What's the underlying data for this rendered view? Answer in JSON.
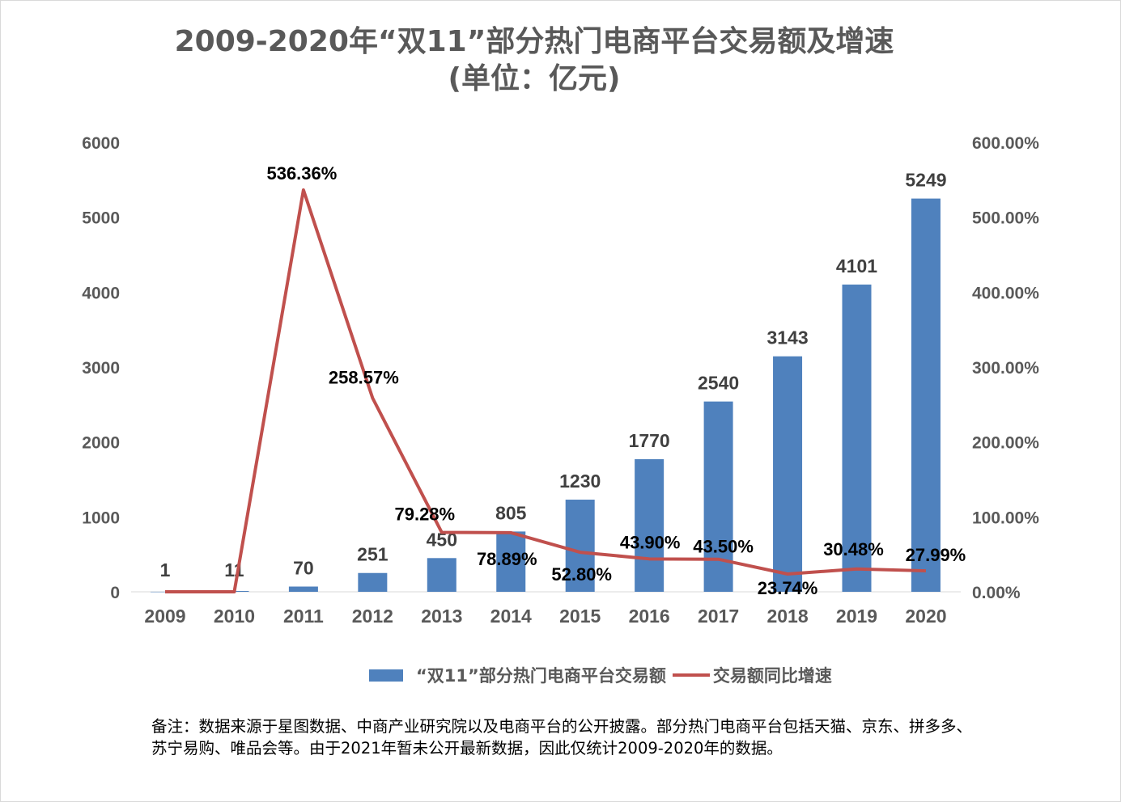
{
  "chart_data": {
    "type": "bar+line",
    "title": "2009-2020年“双11”部分热门电商平台交易额及增速",
    "subtitle": "(单位：亿元)",
    "categories": [
      "2009",
      "2010",
      "2011",
      "2012",
      "2013",
      "2014",
      "2015",
      "2016",
      "2017",
      "2018",
      "2019",
      "2020"
    ],
    "series": [
      {
        "name": "“双11”部分热门电商平台交易额",
        "type": "bar",
        "axis": "left",
        "color": "#4f81bd",
        "values": [
          1,
          11,
          70,
          251,
          450,
          805,
          1230,
          1770,
          2540,
          3143,
          4101,
          5249
        ],
        "labels": [
          "1",
          "11",
          "70",
          "251",
          "450",
          "805",
          "1230",
          "1770",
          "2540",
          "3143",
          "4101",
          "5249"
        ]
      },
      {
        "name": "交易额同比增速",
        "type": "line",
        "axis": "right",
        "color": "#c0504d",
        "values": [
          0,
          0,
          536.36,
          258.57,
          79.28,
          78.89,
          52.8,
          43.9,
          43.5,
          23.74,
          30.48,
          27.99
        ],
        "labels": [
          "",
          "",
          "536.36%",
          "258.57%",
          "79.28%",
          "78.89%",
          "52.80%",
          "43.90%",
          "43.50%",
          "23.74%",
          "30.48%",
          "27.99%"
        ]
      }
    ],
    "y_left": {
      "range": [
        0,
        6000
      ],
      "ticks": [
        "0",
        "1000",
        "2000",
        "3000",
        "4000",
        "5000",
        "6000"
      ]
    },
    "y_right": {
      "range": [
        0,
        600
      ],
      "ticks": [
        "0.00%",
        "100.00%",
        "200.00%",
        "300.00%",
        "400.00%",
        "500.00%",
        "600.00%"
      ]
    },
    "grid": false,
    "legend": "bottom"
  },
  "note": "备注：数据来源于星图数据、中商产业研究院以及电商平台的公开披露。部分热门电商平台包括天猫、京东、拼多多、苏宁易购、唯品会等。由于2021年暂未公开最新数据，因此仅统计2009-2020年的数据。"
}
